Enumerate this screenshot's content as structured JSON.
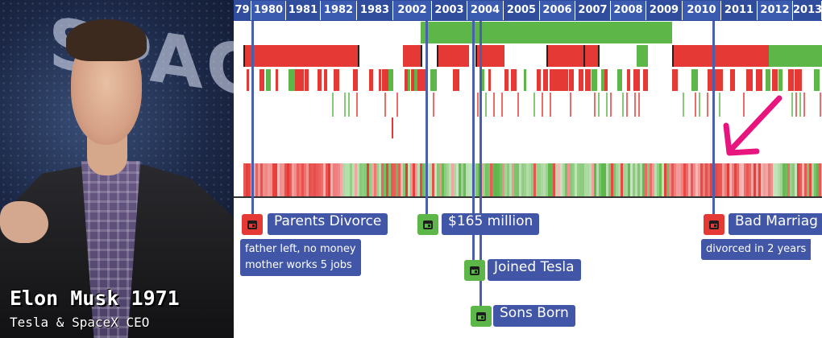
{
  "profile": {
    "name": "Elon Musk 1971",
    "role": "Tesla & SpaceX CEO",
    "backdrop_text": "SPAC"
  },
  "timeline": {
    "years": [
      "79",
      "1980",
      "1981",
      "1982",
      "1983",
      "2002",
      "2003",
      "2004",
      "2005",
      "2006",
      "2007",
      "2008",
      "2009",
      "2010",
      "2011",
      "2012",
      "2013"
    ],
    "events": [
      {
        "id": "parents-divorce",
        "label": "Parents Divorce",
        "status": "red",
        "note_lines": [
          "father left, no money",
          "mother works 5 jobs"
        ]
      },
      {
        "id": "165-million",
        "label": "$165 million",
        "status": "green",
        "note_lines": []
      },
      {
        "id": "joined-tesla",
        "label": "Joined Tesla",
        "status": "green",
        "note_lines": []
      },
      {
        "id": "sons-born",
        "label": "Sons Born",
        "status": "green",
        "note_lines": []
      },
      {
        "id": "bad-marriage",
        "label": "Bad Marriag",
        "status": "red",
        "note_lines": [
          "divorced in 2 years"
        ]
      }
    ]
  },
  "colors": {
    "negative": "#e53935",
    "positive": "#5cb648",
    "accent": "#e8157f",
    "header": "#2f4d9c",
    "label": "#4256a8"
  },
  "icons": {
    "event": "calendar-icon",
    "pointer": "arrow-icon"
  }
}
